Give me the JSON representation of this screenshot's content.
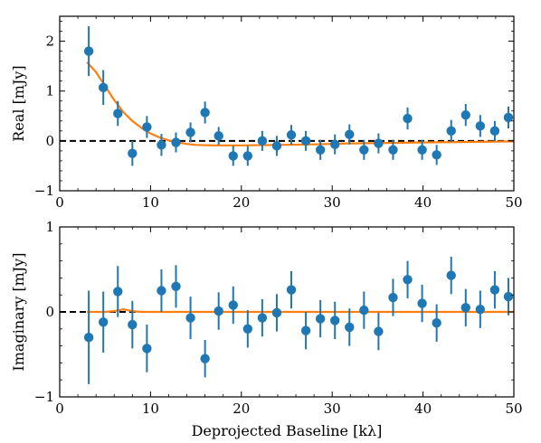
{
  "chart_data": [
    {
      "type": "scatter",
      "panel": "top",
      "xlabel": "",
      "ylabel": "Real [mJy]",
      "xlim": [
        0,
        50
      ],
      "ylim": [
        -1,
        2.5
      ],
      "xticks": [
        0,
        10,
        20,
        30,
        40,
        50
      ],
      "yticks": [
        -1,
        0,
        1,
        2
      ],
      "xtick_labels": [
        "0",
        "10",
        "20",
        "30",
        "40",
        "50"
      ],
      "ytick_labels": [
        "−1",
        "0",
        "1",
        "2"
      ],
      "tick_direction": "in",
      "grid": false,
      "point_color": "#1f77b4",
      "model_color": "#ff7f0e",
      "zero_line_color": "#000000",
      "points": {
        "x": [
          3.2,
          4.8,
          6.4,
          8.0,
          9.6,
          11.2,
          12.8,
          14.4,
          16.0,
          17.5,
          19.1,
          20.7,
          22.3,
          23.9,
          25.5,
          27.1,
          28.7,
          30.3,
          31.9,
          33.5,
          35.1,
          36.7,
          38.3,
          39.9,
          41.5,
          43.1,
          44.7,
          46.3,
          47.9,
          49.4
        ],
        "y": [
          1.8,
          1.07,
          0.55,
          -0.25,
          0.28,
          -0.08,
          -0.03,
          0.17,
          0.57,
          0.1,
          -0.3,
          -0.3,
          0.0,
          -0.1,
          0.12,
          0.0,
          -0.18,
          -0.07,
          0.13,
          -0.18,
          -0.05,
          -0.18,
          0.45,
          -0.18,
          -0.28,
          0.2,
          0.52,
          0.3,
          0.2,
          0.47
        ],
        "err": [
          0.5,
          0.35,
          0.25,
          0.25,
          0.22,
          0.22,
          0.2,
          0.2,
          0.22,
          0.18,
          0.2,
          0.2,
          0.2,
          0.2,
          0.2,
          0.2,
          0.2,
          0.2,
          0.2,
          0.2,
          0.2,
          0.2,
          0.22,
          0.2,
          0.2,
          0.22,
          0.22,
          0.22,
          0.2,
          0.22
        ]
      },
      "model": {
        "x": [
          3.0,
          4.0,
          5.0,
          6.0,
          7.0,
          8.0,
          9.0,
          10.0,
          11.0,
          12.0,
          13.0,
          14.0,
          15.0,
          17.0,
          20.0,
          24.0,
          28.0,
          32.0,
          36.0,
          40.0,
          45.0,
          50.0
        ],
        "y": [
          1.58,
          1.38,
          1.1,
          0.82,
          0.58,
          0.4,
          0.26,
          0.15,
          0.07,
          0.01,
          -0.03,
          -0.06,
          -0.08,
          -0.09,
          -0.09,
          -0.08,
          -0.07,
          -0.05,
          -0.04,
          -0.03,
          -0.02,
          -0.01
        ]
      }
    },
    {
      "type": "scatter",
      "panel": "bottom",
      "xlabel": "Deprojected Baseline [kλ]",
      "ylabel": "Imaginary [mJy]",
      "xlim": [
        0,
        50
      ],
      "ylim": [
        -1,
        1
      ],
      "xticks": [
        0,
        10,
        20,
        30,
        40,
        50
      ],
      "yticks": [
        -1,
        0,
        1
      ],
      "xtick_labels": [
        "0",
        "10",
        "20",
        "30",
        "40",
        "50"
      ],
      "ytick_labels": [
        "−1",
        "0",
        "1"
      ],
      "tick_direction": "in",
      "grid": false,
      "point_color": "#1f77b4",
      "model_color": "#ff7f0e",
      "zero_line_color": "#000000",
      "points": {
        "x": [
          3.2,
          4.8,
          6.4,
          8.0,
          9.6,
          11.2,
          12.8,
          14.4,
          16.0,
          17.5,
          19.1,
          20.7,
          22.3,
          23.9,
          25.5,
          27.1,
          28.7,
          30.3,
          31.9,
          33.5,
          35.1,
          36.7,
          38.3,
          39.9,
          41.5,
          43.1,
          44.7,
          46.3,
          47.9,
          49.4
        ],
        "y": [
          -0.3,
          -0.12,
          0.24,
          -0.15,
          -0.43,
          0.25,
          0.3,
          -0.07,
          -0.55,
          0.01,
          0.08,
          -0.2,
          -0.07,
          -0.01,
          0.26,
          -0.22,
          -0.08,
          -0.1,
          -0.18,
          0.02,
          -0.23,
          0.17,
          0.38,
          0.1,
          -0.13,
          0.43,
          0.05,
          0.03,
          0.26,
          0.18
        ],
        "err": [
          0.55,
          0.36,
          0.3,
          0.28,
          0.28,
          0.25,
          0.25,
          0.25,
          0.22,
          0.22,
          0.22,
          0.22,
          0.22,
          0.22,
          0.22,
          0.22,
          0.22,
          0.22,
          0.22,
          0.22,
          0.22,
          0.22,
          0.22,
          0.22,
          0.22,
          0.22,
          0.22,
          0.22,
          0.22,
          0.22
        ]
      },
      "model": {
        "x": [
          3.0,
          4.0,
          5.0,
          6.0,
          7.0,
          8.0,
          9.0,
          10.0,
          12.0,
          15.0,
          20.0,
          30.0,
          40.0,
          50.0
        ],
        "y": [
          0.0,
          0.0,
          0.0,
          0.01,
          0.03,
          0.01,
          0.0,
          0.0,
          0.0,
          0.0,
          0.0,
          0.0,
          0.0,
          0.0
        ]
      }
    }
  ]
}
